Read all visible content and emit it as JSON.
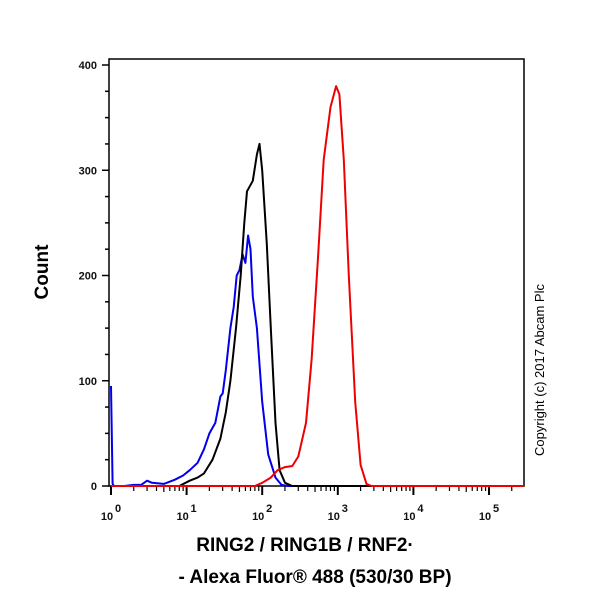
{
  "chart_data": {
    "type": "line",
    "title": "",
    "xlabel": "RING2 / RING1B / RNF2 - Alexa Fluor® 488 (530/30 BP)",
    "xlabel_lines": [
      "RING2 / RING1B / RNF2·",
      "- Alexa Fluor® 488 (530/30 BP)"
    ],
    "ylabel": "Count",
    "x_scale": "log",
    "xlim": [
      1,
      290000
    ],
    "ylim": [
      0,
      400
    ],
    "x_ticks": [
      {
        "base": "10",
        "exp": "0",
        "value": 1
      },
      {
        "base": "10",
        "exp": "1",
        "value": 10
      },
      {
        "base": "10",
        "exp": "2",
        "value": 100
      },
      {
        "base": "10",
        "exp": "3",
        "value": 1000
      },
      {
        "base": "10",
        "exp": "4",
        "value": 10000
      },
      {
        "base": "10",
        "exp": "5",
        "value": 100000
      }
    ],
    "y_ticks": [
      "0",
      "100",
      "200",
      "300",
      "400"
    ],
    "grid": false,
    "legend": "none",
    "annotation": "Copyright (c) 2017 Abcam Plc",
    "series": [
      {
        "color": "#0000ee",
        "points": [
          [
            1,
            95
          ],
          [
            1.05,
            2
          ],
          [
            1.1,
            0
          ],
          [
            1.5,
            0
          ],
          [
            2,
            1
          ],
          [
            2.5,
            1
          ],
          [
            3,
            5
          ],
          [
            3.5,
            3
          ],
          [
            5,
            2
          ],
          [
            7,
            6
          ],
          [
            9,
            10
          ],
          [
            11,
            15
          ],
          [
            14,
            22
          ],
          [
            17,
            35
          ],
          [
            20,
            50
          ],
          [
            24,
            60
          ],
          [
            28,
            85
          ],
          [
            30,
            88
          ],
          [
            33,
            110
          ],
          [
            38,
            150
          ],
          [
            42,
            170
          ],
          [
            46,
            200
          ],
          [
            50,
            205
          ],
          [
            55,
            220
          ],
          [
            60,
            212
          ],
          [
            65,
            238
          ],
          [
            70,
            225
          ],
          [
            75,
            180
          ],
          [
            85,
            150
          ],
          [
            100,
            80
          ],
          [
            120,
            30
          ],
          [
            150,
            8
          ],
          [
            180,
            1
          ],
          [
            220,
            0
          ],
          [
            290000,
            0
          ]
        ]
      },
      {
        "color": "#000000",
        "points": [
          [
            1,
            0
          ],
          [
            8,
            0
          ],
          [
            11,
            5
          ],
          [
            14,
            8
          ],
          [
            17,
            12
          ],
          [
            22,
            25
          ],
          [
            28,
            45
          ],
          [
            33,
            70
          ],
          [
            38,
            100
          ],
          [
            45,
            150
          ],
          [
            52,
            200
          ],
          [
            58,
            250
          ],
          [
            63,
            280
          ],
          [
            75,
            290
          ],
          [
            85,
            315
          ],
          [
            92,
            325
          ],
          [
            100,
            300
          ],
          [
            115,
            230
          ],
          [
            130,
            150
          ],
          [
            150,
            60
          ],
          [
            170,
            15
          ],
          [
            200,
            3
          ],
          [
            250,
            0
          ],
          [
            290000,
            0
          ]
        ]
      },
      {
        "color": "#ee0000",
        "points": [
          [
            1,
            0
          ],
          [
            80,
            0
          ],
          [
            100,
            3
          ],
          [
            130,
            8
          ],
          [
            160,
            15
          ],
          [
            200,
            18
          ],
          [
            250,
            19
          ],
          [
            300,
            28
          ],
          [
            380,
            60
          ],
          [
            450,
            120
          ],
          [
            550,
            220
          ],
          [
            650,
            310
          ],
          [
            800,
            360
          ],
          [
            950,
            380
          ],
          [
            1050,
            372
          ],
          [
            1200,
            310
          ],
          [
            1400,
            200
          ],
          [
            1700,
            80
          ],
          [
            2000,
            20
          ],
          [
            2400,
            2
          ],
          [
            2800,
            0
          ],
          [
            290000,
            0
          ]
        ]
      }
    ]
  }
}
